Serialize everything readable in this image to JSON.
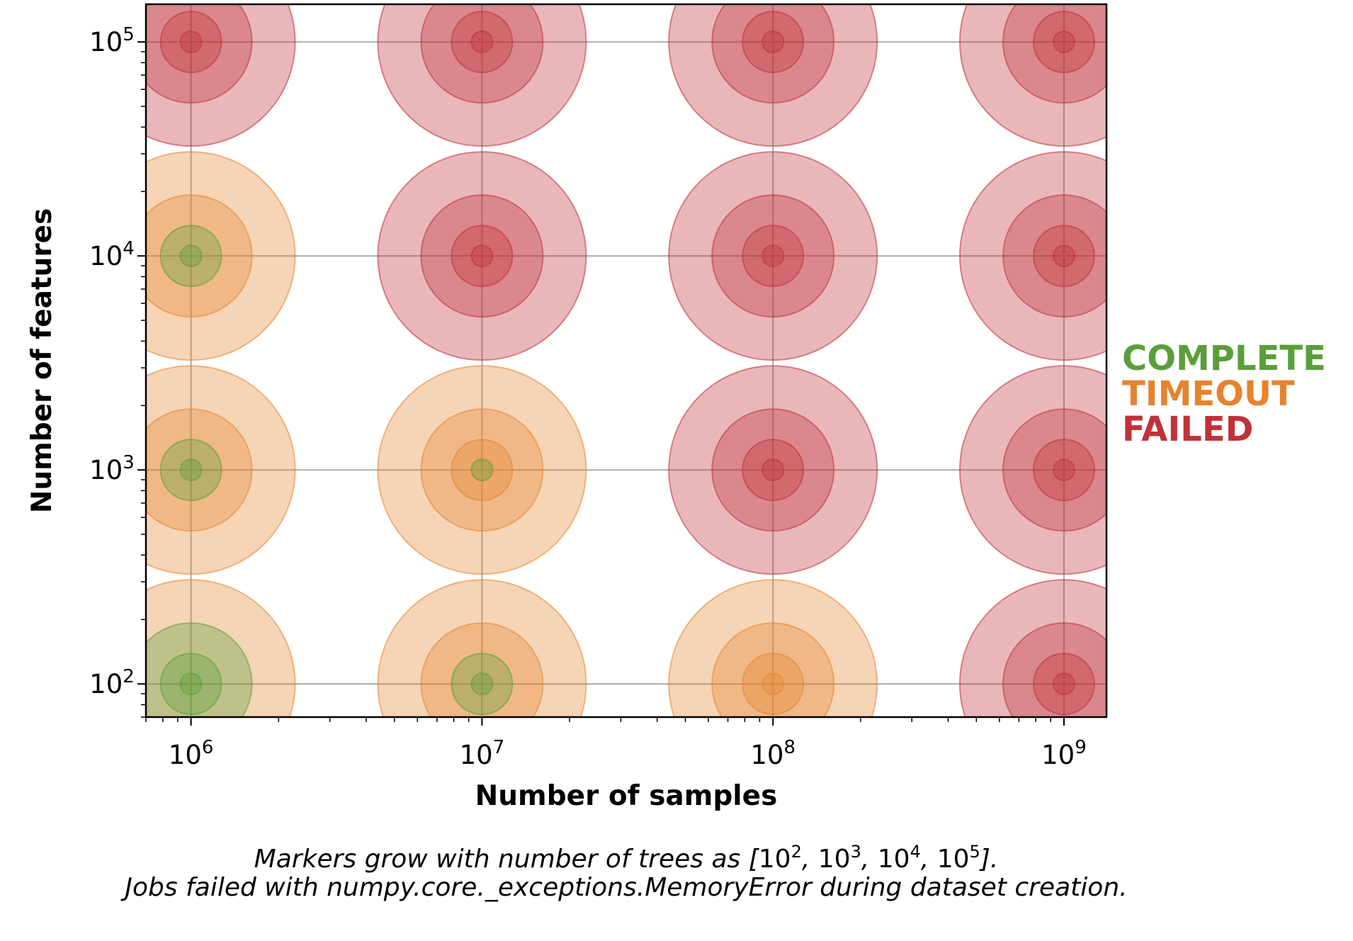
{
  "chart_data": {
    "type": "scatter",
    "xlabel": "Number of samples",
    "ylabel": "Number of features",
    "xscale": "log",
    "yscale": "log",
    "xlim": [
      700000,
      1400000000
    ],
    "ylim": [
      70,
      150000
    ],
    "grid": true,
    "x_ticks": [
      {
        "value": 1000000,
        "base": "10",
        "exp": "6"
      },
      {
        "value": 10000000,
        "base": "10",
        "exp": "7"
      },
      {
        "value": 100000000,
        "base": "10",
        "exp": "8"
      },
      {
        "value": 1000000000,
        "base": "10",
        "exp": "9"
      }
    ],
    "y_ticks": [
      {
        "value": 100,
        "base": "10",
        "exp": "2"
      },
      {
        "value": 1000,
        "base": "10",
        "exp": "3"
      },
      {
        "value": 10000,
        "base": "10",
        "exp": "4"
      },
      {
        "value": 100000,
        "base": "10",
        "exp": "5"
      }
    ],
    "trees": [
      100,
      1000,
      10000,
      100000
    ],
    "statuses": {
      "COMPLETE": "#5a9e3a",
      "TIMEOUT": "#e6832f",
      "FAILED": "#c0323a"
    },
    "legend": [
      {
        "label": "COMPLETE",
        "color": "#5a9e3a"
      },
      {
        "label": "TIMEOUT",
        "color": "#e6832f"
      },
      {
        "label": "FAILED",
        "color": "#c0323a"
      }
    ],
    "legend_position": "right",
    "points": [
      {
        "samples": 1000000,
        "features": 100,
        "status": [
          "COMPLETE",
          "COMPLETE",
          "COMPLETE",
          "TIMEOUT"
        ]
      },
      {
        "samples": 1000000,
        "features": 1000,
        "status": [
          "COMPLETE",
          "COMPLETE",
          "TIMEOUT",
          "TIMEOUT"
        ]
      },
      {
        "samples": 1000000,
        "features": 10000,
        "status": [
          "COMPLETE",
          "COMPLETE",
          "TIMEOUT",
          "TIMEOUT"
        ]
      },
      {
        "samples": 1000000,
        "features": 100000,
        "status": [
          "FAILED",
          "FAILED",
          "FAILED",
          "FAILED"
        ]
      },
      {
        "samples": 10000000,
        "features": 100,
        "status": [
          "COMPLETE",
          "COMPLETE",
          "TIMEOUT",
          "TIMEOUT"
        ]
      },
      {
        "samples": 10000000,
        "features": 1000,
        "status": [
          "COMPLETE",
          "TIMEOUT",
          "TIMEOUT",
          "TIMEOUT"
        ]
      },
      {
        "samples": 10000000,
        "features": 10000,
        "status": [
          "FAILED",
          "FAILED",
          "FAILED",
          "FAILED"
        ]
      },
      {
        "samples": 10000000,
        "features": 100000,
        "status": [
          "FAILED",
          "FAILED",
          "FAILED",
          "FAILED"
        ]
      },
      {
        "samples": 100000000,
        "features": 100,
        "status": [
          "TIMEOUT",
          "TIMEOUT",
          "TIMEOUT",
          "TIMEOUT"
        ]
      },
      {
        "samples": 100000000,
        "features": 1000,
        "status": [
          "FAILED",
          "FAILED",
          "FAILED",
          "FAILED"
        ]
      },
      {
        "samples": 100000000,
        "features": 10000,
        "status": [
          "FAILED",
          "FAILED",
          "FAILED",
          "FAILED"
        ]
      },
      {
        "samples": 100000000,
        "features": 100000,
        "status": [
          "FAILED",
          "FAILED",
          "FAILED",
          "FAILED"
        ]
      },
      {
        "samples": 1000000000,
        "features": 100,
        "status": [
          "FAILED",
          "FAILED",
          "FAILED",
          "FAILED"
        ]
      },
      {
        "samples": 1000000000,
        "features": 1000,
        "status": [
          "FAILED",
          "FAILED",
          "FAILED",
          "FAILED"
        ]
      },
      {
        "samples": 1000000000,
        "features": 10000,
        "status": [
          "FAILED",
          "FAILED",
          "FAILED",
          "FAILED"
        ]
      },
      {
        "samples": 1000000000,
        "features": 100000,
        "status": [
          "FAILED",
          "FAILED",
          "FAILED",
          "FAILED"
        ]
      }
    ],
    "caption": {
      "line1_text": "Markers grow with number of trees as ",
      "line1_list": [
        {
          "base": "10",
          "exp": "2"
        },
        {
          "base": "10",
          "exp": "3"
        },
        {
          "base": "10",
          "exp": "4"
        },
        {
          "base": "10",
          "exp": "5"
        }
      ],
      "line1_suffix": ".",
      "line2": "Jobs failed with numpy.core._exceptions.MemoryError during dataset creation."
    }
  }
}
